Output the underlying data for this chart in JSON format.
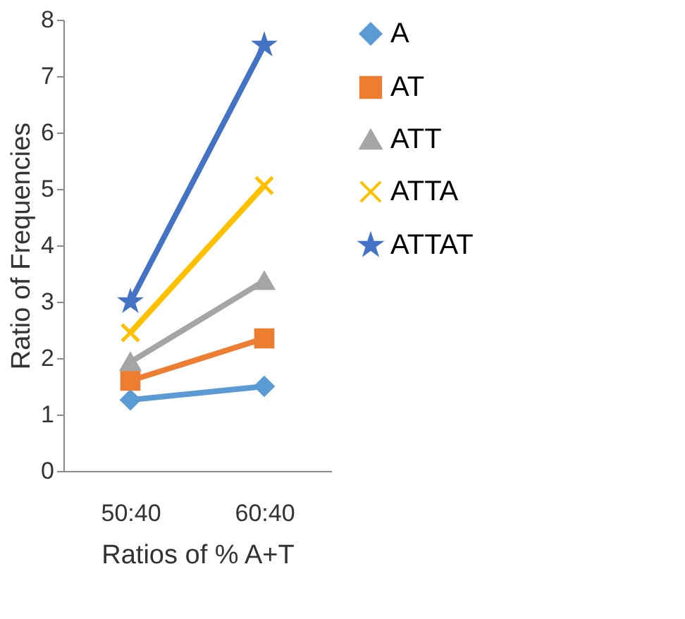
{
  "chart_data": {
    "type": "line",
    "xlabel": "Ratios of % A+T",
    "ylabel": "Ratio of Frequencies",
    "categories": [
      "50:40",
      "60:40"
    ],
    "series": [
      {
        "name": "A",
        "color": "#5b9bd5",
        "marker": "diamond",
        "values": [
          1.26,
          1.5
        ]
      },
      {
        "name": "AT",
        "color": "#ed7d31",
        "marker": "square",
        "values": [
          1.6,
          2.35
        ]
      },
      {
        "name": "ATT",
        "color": "#a5a5a5",
        "marker": "triangle",
        "values": [
          1.93,
          3.37
        ]
      },
      {
        "name": "ATTA",
        "color": "#ffc000",
        "marker": "cross",
        "values": [
          2.45,
          5.06
        ]
      },
      {
        "name": "ATTAT",
        "color": "#4472c4",
        "marker": "star",
        "values": [
          3.0,
          7.55
        ]
      }
    ],
    "ylim": [
      0,
      8
    ],
    "yticks": [
      0,
      1,
      2,
      3,
      4,
      5,
      6,
      7,
      8
    ],
    "grid": false,
    "legend": "right",
    "line_style": "solid"
  }
}
